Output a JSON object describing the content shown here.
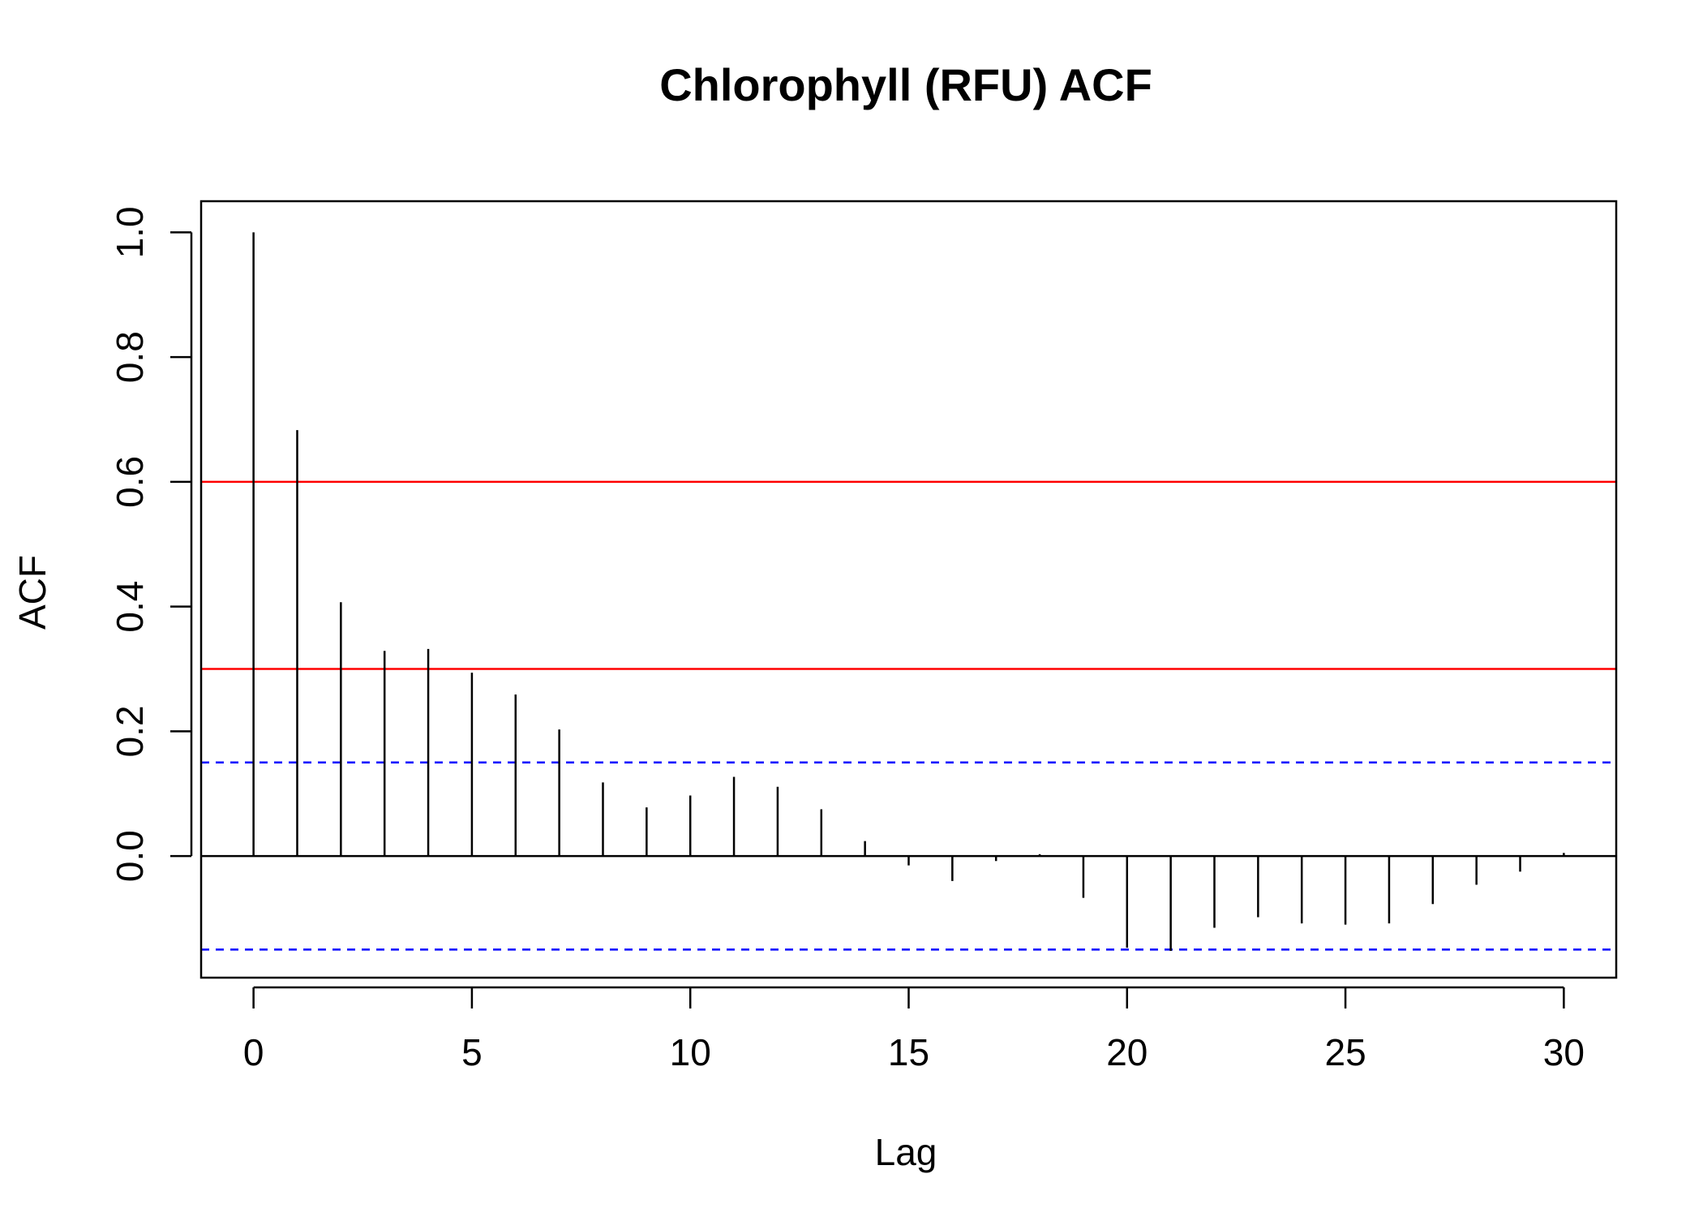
{
  "chart_data": {
    "type": "bar",
    "title": "Chlorophyll (RFU) ACF",
    "xlabel": "Lag",
    "ylabel": "ACF",
    "xlim": [
      -1.2,
      31.2
    ],
    "ylim": [
      -0.195,
      1.05
    ],
    "x_ticks": [
      0,
      5,
      10,
      15,
      20,
      25,
      30
    ],
    "y_ticks": [
      0.0,
      0.2,
      0.4,
      0.6,
      0.8,
      1.0
    ],
    "lags": [
      0,
      1,
      2,
      3,
      4,
      5,
      6,
      7,
      8,
      9,
      10,
      11,
      12,
      13,
      14,
      15,
      16,
      17,
      18,
      19,
      20,
      21,
      22,
      23,
      24,
      25,
      26,
      27,
      28,
      29,
      30
    ],
    "values": [
      1.0,
      0.683,
      0.407,
      0.329,
      0.332,
      0.294,
      0.259,
      0.203,
      0.118,
      0.078,
      0.097,
      0.127,
      0.111,
      0.075,
      0.024,
      -0.015,
      -0.04,
      -0.008,
      0.003,
      -0.067,
      -0.147,
      -0.152,
      -0.115,
      -0.098,
      -0.108,
      -0.11,
      -0.108,
      -0.077,
      -0.046,
      -0.025,
      0.005
    ],
    "reference_lines": [
      {
        "y": 0.6,
        "color": "#ff0000",
        "style": "solid"
      },
      {
        "y": 0.3,
        "color": "#ff0000",
        "style": "solid"
      },
      {
        "y": 0.15,
        "color": "#0000ff",
        "style": "dashed"
      },
      {
        "y": -0.15,
        "color": "#0000ff",
        "style": "dashed"
      }
    ],
    "grid": false
  }
}
